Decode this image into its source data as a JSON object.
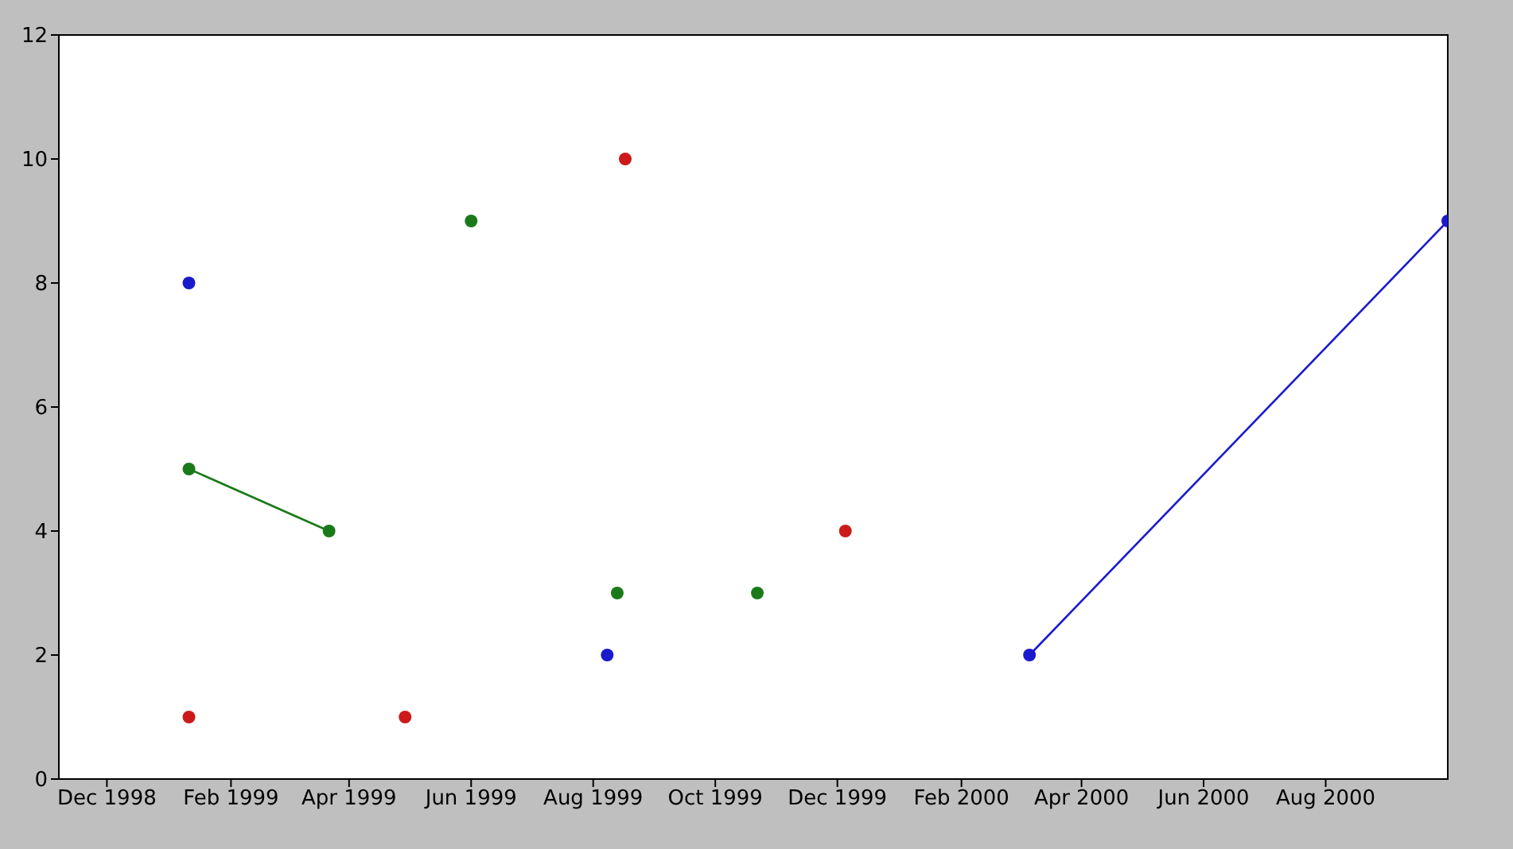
{
  "chart_data": {
    "type": "line",
    "x": [
      "1999-01-11",
      "1999-03-22",
      "1999-04-29",
      "1999-06-01",
      "1999-08-08",
      "1999-08-13",
      "1999-08-17",
      "1999-10-22",
      "1999-12-05",
      "2000-03-06",
      "2000-10-01"
    ],
    "series": [
      {
        "color": "#1a1acc",
        "values": [
          8,
          null,
          null,
          null,
          2,
          null,
          null,
          null,
          null,
          2,
          9
        ]
      },
      {
        "color": "#1a7a1a",
        "values": [
          5,
          4,
          null,
          9,
          null,
          3,
          null,
          3,
          null,
          null,
          null
        ]
      },
      {
        "type": "scatter",
        "color": "#cc1a1a",
        "values": [
          1,
          null,
          1,
          null,
          null,
          null,
          10,
          null,
          4,
          null,
          null
        ]
      }
    ],
    "xlim": [
      "1998-11-07",
      "2000-10-01"
    ],
    "xticks": [
      {
        "value": "1998-12-01",
        "label": "Dec 1998"
      },
      {
        "value": "1999-02-01",
        "label": "Feb 1999"
      },
      {
        "value": "1999-04-01",
        "label": "Apr 1999"
      },
      {
        "value": "1999-06-01",
        "label": "Jun 1999"
      },
      {
        "value": "1999-08-01",
        "label": "Aug 1999"
      },
      {
        "value": "1999-10-01",
        "label": "Oct 1999"
      },
      {
        "value": "1999-12-01",
        "label": "Dec 1999"
      },
      {
        "value": "2000-02-01",
        "label": "Feb 2000"
      },
      {
        "value": "2000-04-01",
        "label": "Apr 2000"
      },
      {
        "value": "2000-06-01",
        "label": "Jun 2000"
      },
      {
        "value": "2000-08-01",
        "label": "Aug 2000"
      }
    ],
    "ylim": [
      0,
      12
    ],
    "yticks": [
      0,
      2,
      4,
      6,
      8,
      10,
      12
    ],
    "grid": false,
    "legend": false,
    "marker": "circle",
    "line_style": "solid"
  }
}
